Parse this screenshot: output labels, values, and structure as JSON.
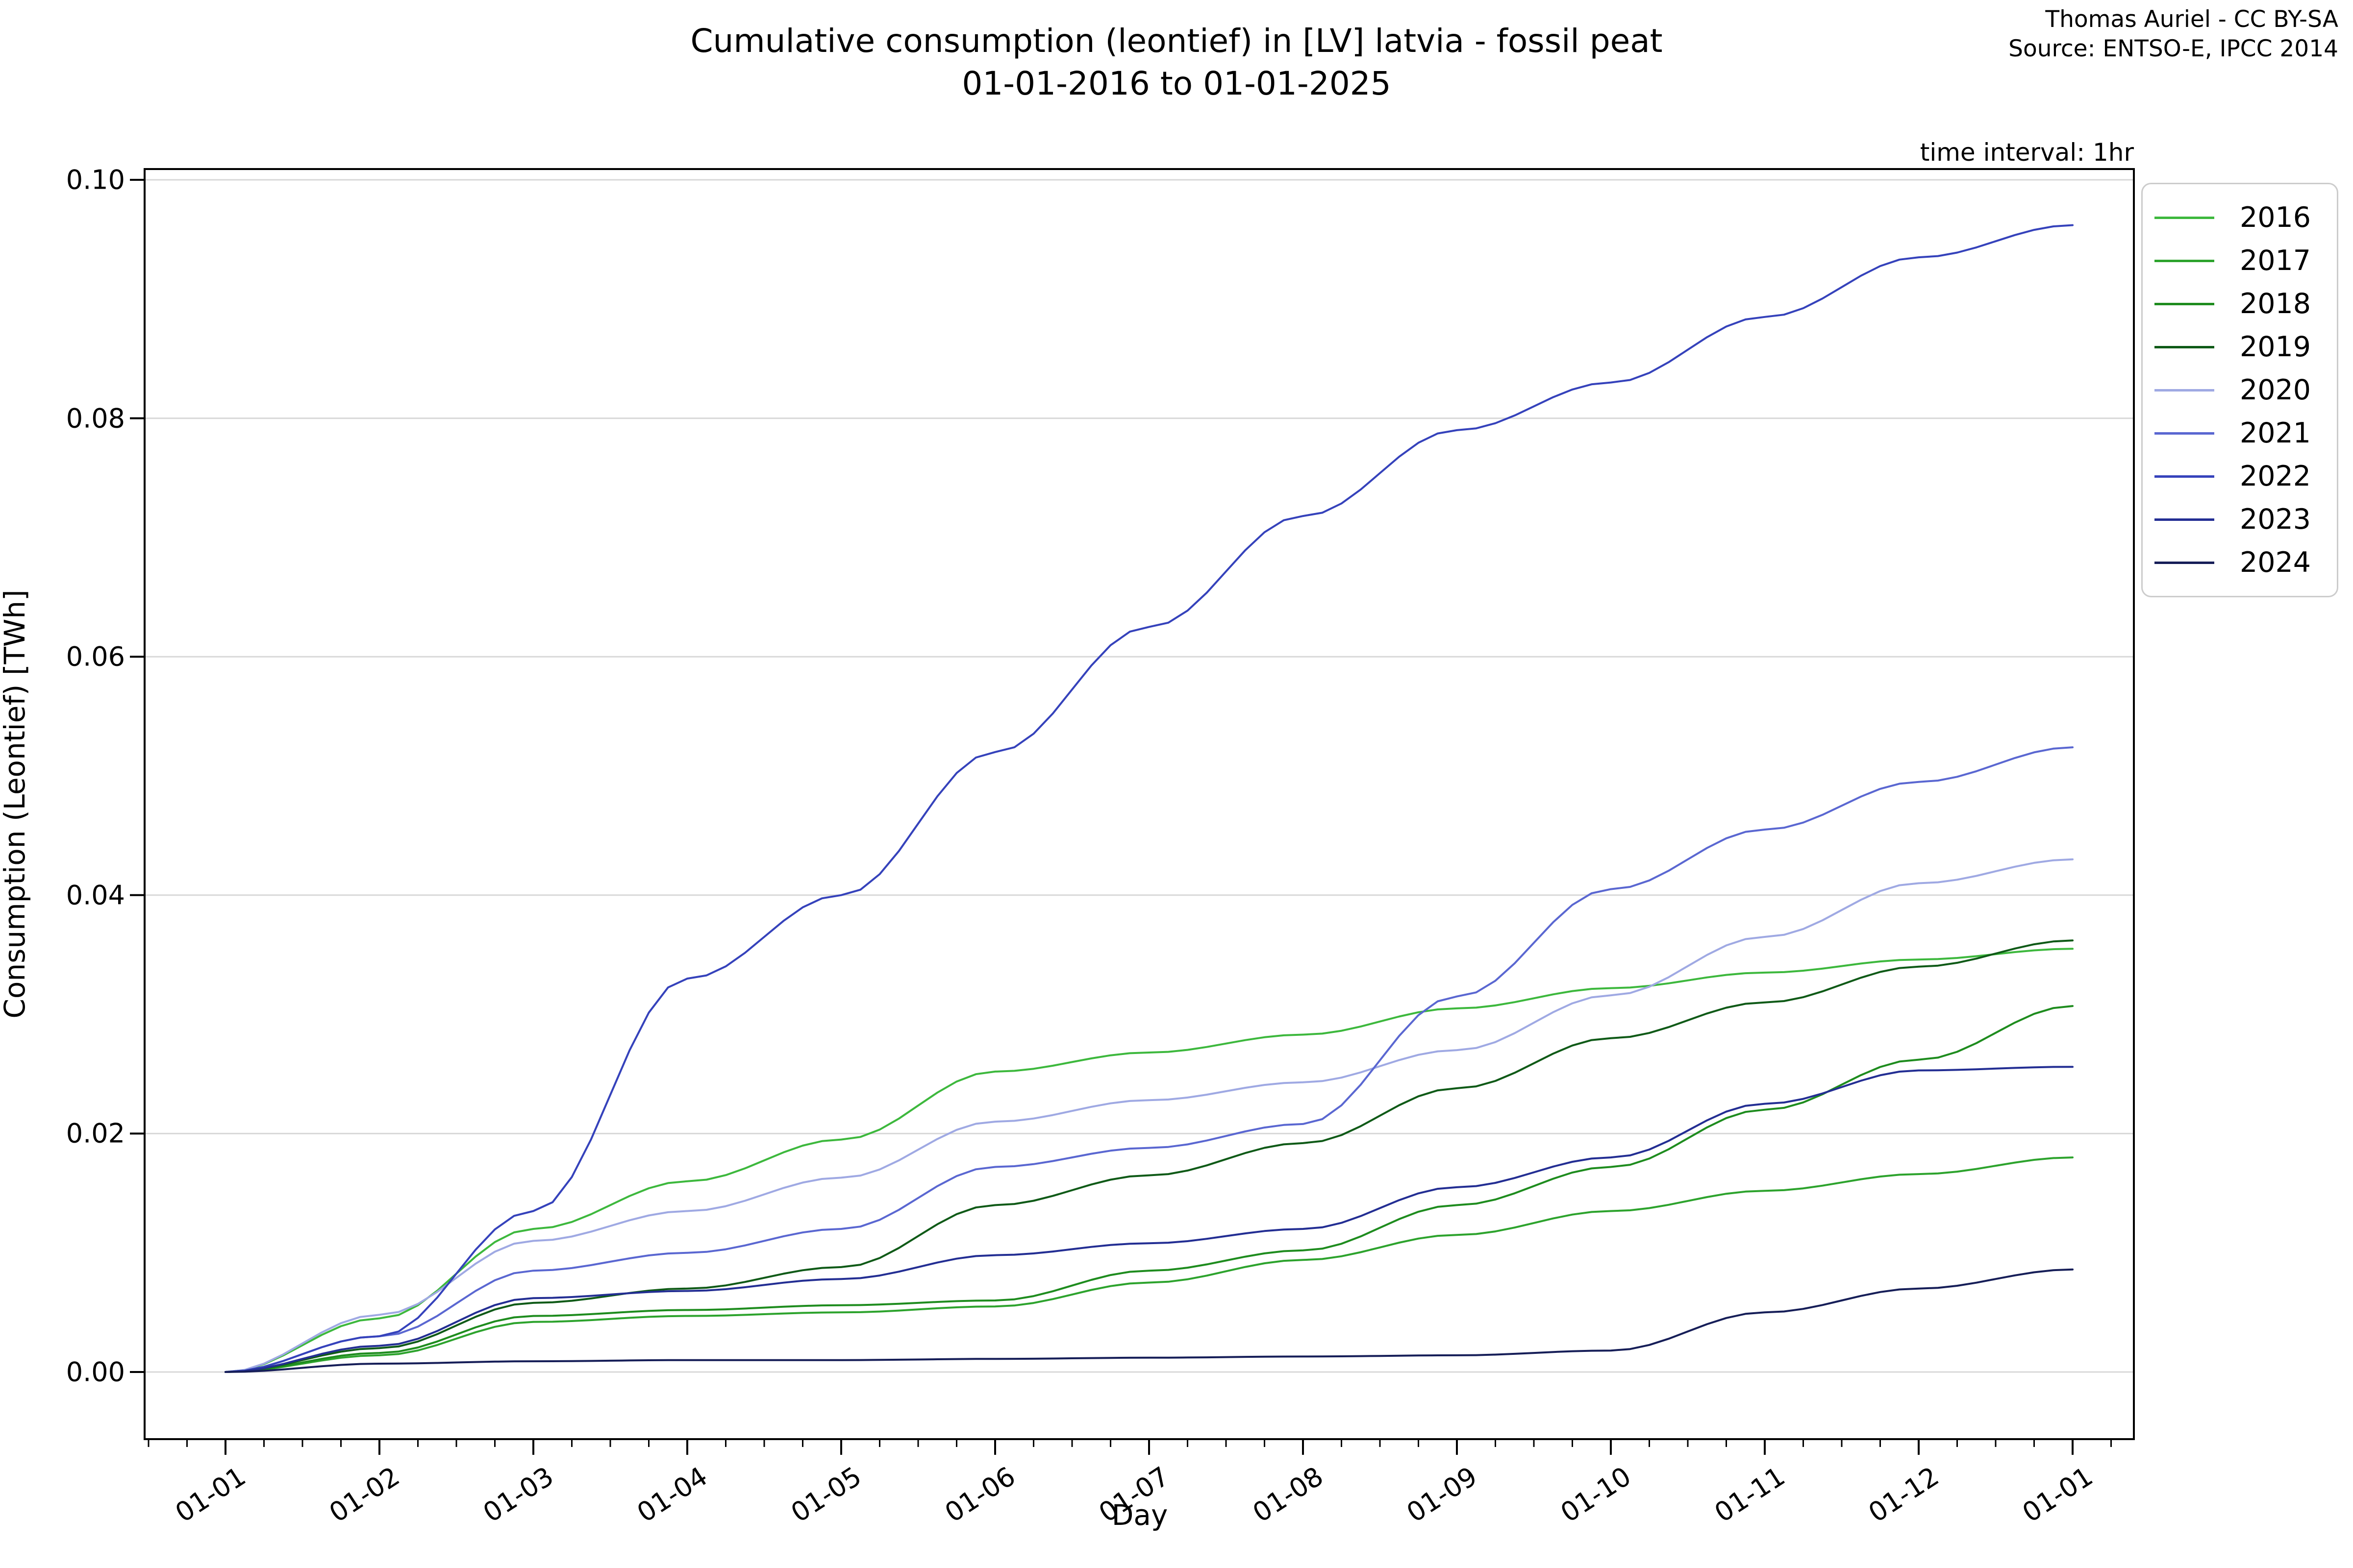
{
  "title": {
    "line1": "Cumulative consumption (leontief) in [LV] latvia - fossil peat",
    "line2": "01-01-2016 to 01-01-2025"
  },
  "attribution": {
    "line1": "Thomas Auriel - CC BY-SA",
    "line2": "Source: ENTSO-E, IPCC 2014"
  },
  "annotation": "time interval: 1hr",
  "axes": {
    "x_label": "Day",
    "y_label": "Consumption (Leontief) [TWh]",
    "x_ticks": [
      "01-01",
      "01-02",
      "01-03",
      "01-04",
      "01-05",
      "01-06",
      "01-07",
      "01-08",
      "01-09",
      "01-10",
      "01-11",
      "01-12",
      "01-01"
    ],
    "y_ticks": [
      "0.00",
      "0.02",
      "0.04",
      "0.06",
      "0.08",
      "0.10"
    ],
    "y_range": [
      0.0,
      0.1
    ],
    "grid": "horizontal-only"
  },
  "colors": {
    "grid": "#d8d8d8",
    "spine": "#000000",
    "background": "#ffffff",
    "legend_border": "#cccccc"
  },
  "chart_data": {
    "type": "line",
    "title": "Cumulative consumption (leontief) in [LV] latvia - fossil peat 01-01-2016 to 01-01-2025",
    "xlabel": "Day",
    "ylabel": "Consumption (Leontief) [TWh]",
    "ylim": [
      0.0,
      0.1
    ],
    "legend_position": "outside-right-top",
    "categories": [
      "01-01",
      "01-02",
      "01-03",
      "01-04",
      "01-05",
      "01-06",
      "01-07",
      "01-08",
      "01-09",
      "01-10",
      "01-11",
      "01-12",
      "01-01"
    ],
    "series": [
      {
        "name": "2016",
        "color": "#3db83d",
        "values": [
          0,
          0.0045,
          0.012,
          0.016,
          0.0195,
          0.0252,
          0.0268,
          0.0283,
          0.0305,
          0.0322,
          0.0335,
          0.0346,
          0.0355
        ]
      },
      {
        "name": "2017",
        "color": "#2da32d",
        "values": [
          0,
          0.0014,
          0.0042,
          0.0047,
          0.005,
          0.0055,
          0.0075,
          0.0094,
          0.0115,
          0.0135,
          0.0152,
          0.0166,
          0.018
        ]
      },
      {
        "name": "2018",
        "color": "#1e8c1e",
        "values": [
          0,
          0.0016,
          0.0047,
          0.0052,
          0.0056,
          0.006,
          0.0085,
          0.0102,
          0.014,
          0.0172,
          0.022,
          0.0262,
          0.0307
        ]
      },
      {
        "name": "2019",
        "color": "#0f5a17",
        "values": [
          0,
          0.002,
          0.0058,
          0.007,
          0.0088,
          0.014,
          0.0165,
          0.0192,
          0.0238,
          0.028,
          0.031,
          0.034,
          0.0362
        ]
      },
      {
        "name": "2020",
        "color": "#9fa9e3",
        "values": [
          0,
          0.0048,
          0.011,
          0.0135,
          0.0163,
          0.021,
          0.0228,
          0.0243,
          0.027,
          0.0316,
          0.0365,
          0.041,
          0.043
        ]
      },
      {
        "name": "2021",
        "color": "#5a67d1",
        "values": [
          0,
          0.003,
          0.0085,
          0.01,
          0.012,
          0.0172,
          0.0188,
          0.0208,
          0.0315,
          0.0405,
          0.0455,
          0.0495,
          0.0524
        ]
      },
      {
        "name": "2022",
        "color": "#3542bb",
        "values": [
          0,
          0.003,
          0.0135,
          0.033,
          0.04,
          0.052,
          0.0625,
          0.0718,
          0.079,
          0.083,
          0.0885,
          0.0935,
          0.0962
        ]
      },
      {
        "name": "2023",
        "color": "#232e93",
        "values": [
          0,
          0.0022,
          0.0062,
          0.0068,
          0.0078,
          0.0098,
          0.0108,
          0.012,
          0.0155,
          0.018,
          0.0225,
          0.0253,
          0.0256
        ]
      },
      {
        "name": "2024",
        "color": "#161e58",
        "values": [
          0,
          0.0007,
          0.0009,
          0.001,
          0.001,
          0.0011,
          0.0012,
          0.0013,
          0.0014,
          0.0018,
          0.005,
          0.007,
          0.0086
        ]
      }
    ]
  }
}
